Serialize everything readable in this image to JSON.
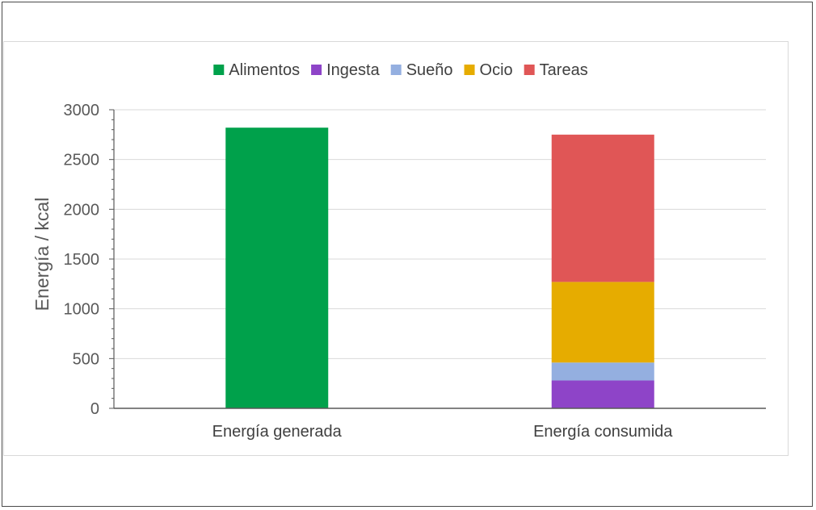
{
  "chart_data": {
    "type": "bar",
    "stacked": true,
    "categories": [
      "Energía generada",
      "Energía consumida"
    ],
    "series": [
      {
        "name": "Alimentos",
        "color": "#00a14b",
        "values": [
          2820,
          0
        ]
      },
      {
        "name": "Ingesta",
        "color": "#8e44c8",
        "values": [
          0,
          280
        ]
      },
      {
        "name": "Sueño",
        "color": "#94afe0",
        "values": [
          0,
          180
        ]
      },
      {
        "name": "Ocio",
        "color": "#e6ac00",
        "values": [
          0,
          810
        ]
      },
      {
        "name": "Tareas",
        "color": "#e05656",
        "values": [
          0,
          1480
        ]
      }
    ],
    "ylabel": "Energía / kcal",
    "xlabel": "",
    "ylim": [
      0,
      3000
    ],
    "yticks": [
      0,
      500,
      1000,
      1500,
      2000,
      2500,
      3000
    ],
    "grid": true,
    "legend_position": "top"
  }
}
